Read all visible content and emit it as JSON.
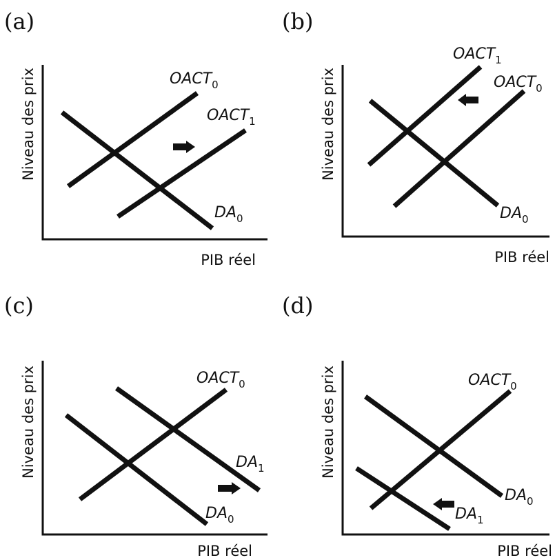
{
  "panels": [
    {
      "letter": "(a)",
      "ylabel": "Niveau des prix",
      "xlabel": "PIB réel",
      "curves": [
        {
          "base": "OACT",
          "sub": "0"
        },
        {
          "base": "OACT",
          "sub": "1"
        },
        {
          "base": "DA",
          "sub": "0"
        }
      ],
      "arrow": "right"
    },
    {
      "letter": "(b)",
      "ylabel": "Niveau des prix",
      "xlabel": "PIB réel",
      "curves": [
        {
          "base": "OACT",
          "sub": "1"
        },
        {
          "base": "OACT",
          "sub": "0"
        },
        {
          "base": "DA",
          "sub": "0"
        }
      ],
      "arrow": "left"
    },
    {
      "letter": "(c)",
      "ylabel": "Niveau des prix",
      "xlabel": "PIB réel",
      "curves": [
        {
          "base": "OACT",
          "sub": "0"
        },
        {
          "base": "DA",
          "sub": "1"
        },
        {
          "base": "DA",
          "sub": "0"
        }
      ],
      "arrow": "right"
    },
    {
      "letter": "(d)",
      "ylabel": "Niveau des prix",
      "xlabel": "PIB réel",
      "curves": [
        {
          "base": "OACT",
          "sub": "0"
        },
        {
          "base": "DA",
          "sub": "0"
        },
        {
          "base": "DA",
          "sub": "1"
        }
      ],
      "arrow": "left"
    }
  ],
  "colors": {
    "ink": "#111111",
    "background": "#ffffff"
  }
}
